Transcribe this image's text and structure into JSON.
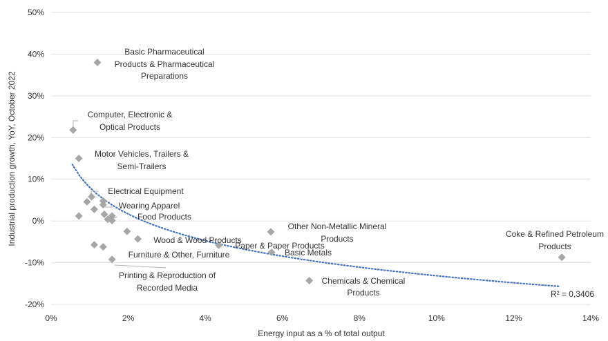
{
  "colors": {
    "marker": "#a6a6a6",
    "trendline": "#4472c4",
    "gridline": "#e0e0e0",
    "text": "#333333",
    "leader": "#b3b3b3"
  },
  "chart_data": {
    "type": "scatter",
    "title": "",
    "xlabel": "Energy input as a % of total output",
    "ylabel": "Industrial production growth, YoY, October 2022",
    "xlim": [
      0,
      14
    ],
    "ylim": [
      -20,
      50
    ],
    "x_ticks": [
      0,
      2,
      4,
      6,
      8,
      10,
      12,
      14
    ],
    "x_tick_labels": [
      "0%",
      "2%",
      "4%",
      "6%",
      "8%",
      "10%",
      "12%",
      "14%"
    ],
    "y_ticks": [
      -20,
      -10,
      0,
      10,
      20,
      30,
      40,
      50
    ],
    "y_tick_labels": [
      "-20%",
      "-10%",
      "0%",
      "10%",
      "20%",
      "30%",
      "40%",
      "50%"
    ],
    "grid": "horizontal",
    "marker": "diamond",
    "points": [
      {
        "x": 1.2,
        "y": 38.0,
        "label": "Basic Pharmaceutical Products & Pharmaceutical Preparations"
      },
      {
        "x": 0.57,
        "y": 21.8,
        "label": "Computer, Electronic & Optical Products"
      },
      {
        "x": 0.72,
        "y": 15.0,
        "label": "Motor Vehicles, Trailers & Semi-Trailers"
      },
      {
        "x": 1.05,
        "y": 5.8,
        "label": "Electrical Equipment"
      },
      {
        "x": 1.35,
        "y": 4.8,
        "label": "Wearing Apparel"
      },
      {
        "x": 1.58,
        "y": 1.2,
        "label": "Food Products"
      },
      {
        "x": 2.25,
        "y": -4.3,
        "label": "Wood & Wood Products"
      },
      {
        "x": 5.7,
        "y": -2.6,
        "label": "Other Non-Metallic Mineral Products"
      },
      {
        "x": 4.35,
        "y": -5.8,
        "label": "Paper & Paper Products"
      },
      {
        "x": 5.72,
        "y": -7.5,
        "label": "Basic Metals"
      },
      {
        "x": 1.35,
        "y": -6.2,
        "label": "Furniture & Other, Furniture"
      },
      {
        "x": 1.58,
        "y": -9.2,
        "label": "Printing & Reproduction of Recorded Media"
      },
      {
        "x": 6.7,
        "y": -14.3,
        "label": "Chemicals & Chemical Products"
      },
      {
        "x": 13.25,
        "y": -8.7,
        "label": "Coke & Refined Petroleum Products"
      },
      {
        "x": 0.93,
        "y": 4.6,
        "label": ""
      },
      {
        "x": 1.12,
        "y": 2.8,
        "label": ""
      },
      {
        "x": 0.72,
        "y": 1.2,
        "label": ""
      },
      {
        "x": 1.35,
        "y": 3.9,
        "label": ""
      },
      {
        "x": 1.38,
        "y": 1.6,
        "label": ""
      },
      {
        "x": 1.47,
        "y": 0.4,
        "label": ""
      },
      {
        "x": 1.58,
        "y": 0.1,
        "label": ""
      },
      {
        "x": 1.97,
        "y": -2.5,
        "label": ""
      },
      {
        "x": 1.12,
        "y": -5.7,
        "label": ""
      }
    ],
    "trendline": {
      "type": "logarithmic",
      "a": 8.05,
      "b": -9.2,
      "x_range": [
        0.55,
        13.2
      ],
      "r_squared_label": "R² = 0,3406"
    }
  }
}
